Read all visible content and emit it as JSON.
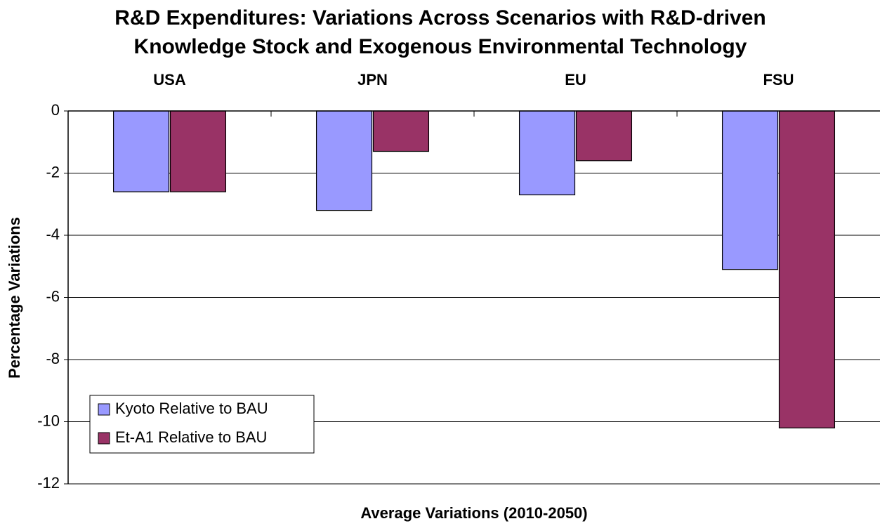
{
  "chart_data": {
    "type": "bar",
    "title": [
      "R&D Expenditures: Variations Across Scenarios with R&D-driven",
      "Knowledge Stock and Exogenous Environmental Technology"
    ],
    "categories": [
      "USA",
      "JPN",
      "EU",
      "FSU"
    ],
    "series": [
      {
        "name": "Kyoto Relative to BAU",
        "color": "#9999ff",
        "values": [
          -2.6,
          -3.2,
          -2.7,
          -5.1
        ]
      },
      {
        "name": "Et-A1 Relative to BAU",
        "color": "#993366",
        "values": [
          -2.6,
          -1.3,
          -1.6,
          -10.2
        ]
      }
    ],
    "ylabel": "Percentage Variations",
    "xlabel": "Average Variations (2010-2050)",
    "ylim": [
      -12,
      0
    ],
    "yticks": [
      0,
      -2,
      -4,
      -6,
      -8,
      -10,
      -12
    ],
    "grid": true,
    "legend": "lower left"
  }
}
